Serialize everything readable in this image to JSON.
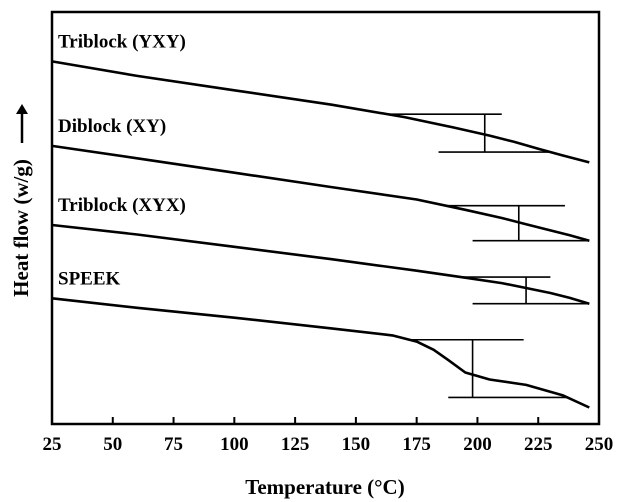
{
  "chart_data": {
    "type": "line",
    "title": "",
    "xlabel": "Temperature (°C)",
    "ylabel": "Heat flow (w/g)",
    "xlim": [
      25,
      250
    ],
    "x_ticks": [
      25,
      50,
      75,
      100,
      125,
      150,
      175,
      200,
      225,
      250
    ],
    "y_ticks_shown": false,
    "grid": false,
    "ylabel_arrow": "up",
    "series": [
      {
        "name": "Triblock (YXY)",
        "points": [
          [
            25,
            0.88
          ],
          [
            60,
            0.845
          ],
          [
            100,
            0.81
          ],
          [
            140,
            0.775
          ],
          [
            170,
            0.745
          ],
          [
            190,
            0.72
          ],
          [
            205,
            0.7
          ],
          [
            215,
            0.685
          ],
          [
            225,
            0.668
          ],
          [
            235,
            0.652
          ],
          [
            246,
            0.635
          ]
        ],
        "tg_marker": {
          "x_center": 203,
          "upper_x": [
            163,
            210
          ],
          "lower_x": [
            184,
            230
          ]
        }
      },
      {
        "name": "Diblock (XY)",
        "points": [
          [
            25,
            0.675
          ],
          [
            60,
            0.645
          ],
          [
            100,
            0.61
          ],
          [
            140,
            0.575
          ],
          [
            175,
            0.545
          ],
          [
            195,
            0.52
          ],
          [
            210,
            0.5
          ],
          [
            220,
            0.485
          ],
          [
            230,
            0.47
          ],
          [
            238,
            0.458
          ],
          [
            246,
            0.445
          ]
        ],
        "tg_marker": {
          "x_center": 217,
          "upper_x": [
            187,
            236
          ],
          "lower_x": [
            198,
            246
          ]
        }
      },
      {
        "name": "Triblock (XYX)",
        "points": [
          [
            25,
            0.483
          ],
          [
            60,
            0.46
          ],
          [
            100,
            0.43
          ],
          [
            140,
            0.4
          ],
          [
            175,
            0.372
          ],
          [
            195,
            0.355
          ],
          [
            210,
            0.342
          ],
          [
            220,
            0.33
          ],
          [
            230,
            0.318
          ],
          [
            238,
            0.306
          ],
          [
            246,
            0.292
          ]
        ],
        "tg_marker": {
          "x_center": 220,
          "upper_x": [
            193,
            230
          ],
          "lower_x": [
            198,
            246
          ]
        }
      },
      {
        "name": "SPEEK",
        "points": [
          [
            25,
            0.305
          ],
          [
            60,
            0.282
          ],
          [
            100,
            0.258
          ],
          [
            140,
            0.232
          ],
          [
            165,
            0.215
          ],
          [
            175,
            0.2
          ],
          [
            182,
            0.18
          ],
          [
            188,
            0.155
          ],
          [
            195,
            0.125
          ],
          [
            205,
            0.108
          ],
          [
            220,
            0.095
          ],
          [
            235,
            0.07
          ],
          [
            246,
            0.04
          ]
        ],
        "tg_marker": {
          "x_center": 198,
          "upper_x": [
            172,
            219
          ],
          "lower_x": [
            188,
            237
          ]
        }
      }
    ]
  }
}
